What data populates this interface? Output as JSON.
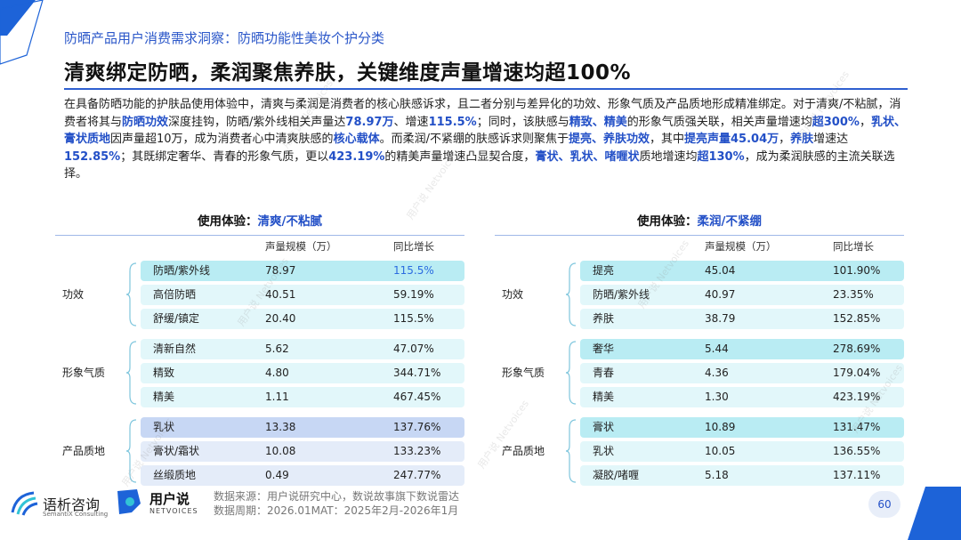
{
  "header": {
    "subtitle": "防晒产品用户消费需求洞察：防晒功能性美妆个护分类",
    "title": "清爽绑定防晒，柔润聚焦养肤，关键维度声量增速均超100%"
  },
  "paragraph": [
    {
      "t": "在具备防晒功能的护肤品使用体验中，清爽与柔润是消费者的核心肤感诉求，且二者分别与差异化的功效、形象气质及产品质地形成精准绑定。对于清爽/不粘腻，消费者将其与",
      "b": false
    },
    {
      "t": "防晒功效",
      "b": true
    },
    {
      "t": "深度挂钩，防晒/紫外线相关声量达",
      "b": false
    },
    {
      "t": "78.97万",
      "b": true
    },
    {
      "t": "、增速",
      "b": false
    },
    {
      "t": "115.5%",
      "b": true
    },
    {
      "t": "；同时，该肤感与",
      "b": false
    },
    {
      "t": "精致、精美",
      "b": true
    },
    {
      "t": "的形象气质强关联，相关声量增速均",
      "b": false
    },
    {
      "t": "超300%",
      "b": true
    },
    {
      "t": "，",
      "b": false
    },
    {
      "t": "乳状、膏状质地",
      "b": true
    },
    {
      "t": "因声量超10万，成为消费者心中清爽肤感的",
      "b": false
    },
    {
      "t": "核心载体",
      "b": true
    },
    {
      "t": "。而柔润/不紧绷的肤感诉求则聚焦于",
      "b": false
    },
    {
      "t": "提亮、养肤功效",
      "b": true
    },
    {
      "t": "，其中",
      "b": false
    },
    {
      "t": "提亮声量45.04万",
      "b": true
    },
    {
      "t": "，",
      "b": false
    },
    {
      "t": "养肤",
      "b": true
    },
    {
      "t": "增速达",
      "b": false
    },
    {
      "t": "152.85%",
      "b": true
    },
    {
      "t": "；其既绑定奢华、青春的形象气质，更以",
      "b": false
    },
    {
      "t": "423.19%",
      "b": true
    },
    {
      "t": "的精美声量增速凸显契合度，",
      "b": false
    },
    {
      "t": "膏状、乳状、啫喱状",
      "b": true
    },
    {
      "t": "质地增速均",
      "b": false
    },
    {
      "t": "超130%",
      "b": true
    },
    {
      "t": "，成为柔润肤感的主流关联选择。",
      "b": false
    }
  ],
  "left_panel": {
    "head_prefix": "使用体验：",
    "head_highlight": "清爽/不粘腻",
    "col_volume": "声量规模（万）",
    "col_growth": "同比增长",
    "groups": [
      {
        "label": "功效",
        "rows": [
          {
            "name": "防晒/紫外线",
            "value": "78.97",
            "growth": "115.5%",
            "hl": true
          },
          {
            "name": "高倍防晒",
            "value": "40.51",
            "growth": "59.19%"
          },
          {
            "name": "舒缓/镇定",
            "value": "20.40",
            "growth": "115.5%"
          }
        ]
      },
      {
        "label": "形象气质",
        "rows": [
          {
            "name": "清新自然",
            "value": "5.62",
            "growth": "47.07%"
          },
          {
            "name": "精致",
            "value": "4.80",
            "growth": "344.71%"
          },
          {
            "name": "精美",
            "value": "1.11",
            "growth": "467.45%"
          }
        ]
      },
      {
        "label": "产品质地",
        "rows": [
          {
            "name": "乳状",
            "value": "13.38",
            "growth": "137.76%"
          },
          {
            "name": "膏状/霜状",
            "value": "10.08",
            "growth": "133.23%"
          },
          {
            "name": "丝缎质地",
            "value": "0.49",
            "growth": "247.77%"
          }
        ]
      }
    ]
  },
  "right_panel": {
    "head_prefix": "使用体验：",
    "head_highlight": "柔润/不紧绷",
    "col_volume": "声量规模（万）",
    "col_growth": "同比增长",
    "groups": [
      {
        "label": "功效",
        "rows": [
          {
            "name": "提亮",
            "value": "45.04",
            "growth": "101.90%"
          },
          {
            "name": "防晒/紫外线",
            "value": "40.97",
            "growth": "23.35%"
          },
          {
            "name": "养肤",
            "value": "38.79",
            "growth": "152.85%"
          }
        ]
      },
      {
        "label": "形象气质",
        "rows": [
          {
            "name": "奢华",
            "value": "5.44",
            "growth": "278.69%"
          },
          {
            "name": "青春",
            "value": "4.36",
            "growth": "179.04%"
          },
          {
            "name": "精美",
            "value": "1.30",
            "growth": "423.19%"
          }
        ]
      },
      {
        "label": "产品质地",
        "rows": [
          {
            "name": "膏状",
            "value": "10.89",
            "growth": "131.47%"
          },
          {
            "name": "乳状",
            "value": "10.05",
            "growth": "136.55%"
          },
          {
            "name": "凝胶/啫喱",
            "value": "5.18",
            "growth": "137.11%"
          }
        ]
      }
    ]
  },
  "footer": {
    "logo1_cn": "语析咨询",
    "logo1_en": "SemantiX Consulting",
    "logo2_cn": "用户说",
    "logo2_en": "NETVOICES",
    "source_line1": "数据来源：用户说研究中心，数说故事旗下数说雷达",
    "source_line2": "数据周期：2026.01MAT：2025年2月-2026年1月",
    "page_number": "60"
  },
  "watermark_text": "用户说 Netvoices",
  "colors": {
    "accent": "#2350c7",
    "row_cyan_strong": "#b9ecf3",
    "row_cyan_light": "#e2f7fa",
    "row_blue_strong": "#c7d7f4",
    "row_blue_light": "#e4ecf9"
  }
}
